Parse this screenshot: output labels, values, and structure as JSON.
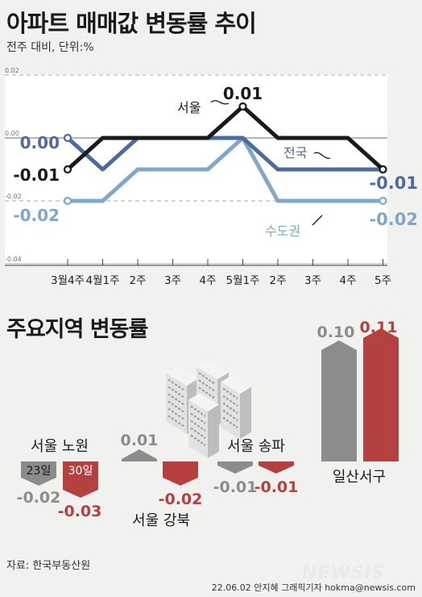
{
  "title": "아파트 매매값 변동률 추이",
  "subtitle": "전주 대비, 단위:%",
  "section2_title": "주요지역 변동률",
  "source": "자료: 한국부동산원",
  "credit": "22.06.02 안지혜 그래픽기자 hokma@newsis.com",
  "watermark": "NEWSIS",
  "chart_data": [
    {
      "type": "line",
      "x": [
        "3월4주",
        "4월1주",
        "2주",
        "3주",
        "4주",
        "5월1주",
        "2주",
        "3주",
        "4주",
        "5주"
      ],
      "ylim": [
        -0.04,
        0.02
      ],
      "y_ticks": [
        "0.02",
        "0.00",
        "-0.02",
        "-0.04"
      ],
      "series": [
        {
          "name": "서울",
          "color": "#1a1a1a",
          "values": [
            -0.01,
            0.0,
            0.0,
            0.0,
            0.0,
            0.01,
            0.0,
            0.0,
            0.0,
            -0.01
          ],
          "start_label": "-0.01",
          "peak_label": "0.01",
          "end_label": ""
        },
        {
          "name": "전국",
          "color": "#4f6a9e",
          "values": [
            0.0,
            -0.01,
            0.0,
            0.0,
            0.0,
            0.0,
            -0.01,
            -0.01,
            -0.01,
            -0.01
          ],
          "start_label": "0.00",
          "end_label": "-0.01"
        },
        {
          "name": "수도권",
          "color": "#7fa8c8",
          "values": [
            -0.02,
            -0.02,
            -0.01,
            -0.01,
            -0.01,
            0.0,
            -0.02,
            -0.02,
            -0.02,
            -0.02
          ],
          "start_label": "-0.02",
          "end_label": "-0.02"
        }
      ]
    },
    {
      "type": "bar",
      "series_names": [
        "23일",
        "30일"
      ],
      "colors": [
        "#8c8c8c",
        "#b4403f"
      ],
      "regions": [
        {
          "name": "서울 노원",
          "values": [
            -0.02,
            -0.03
          ],
          "labels": [
            "-0.02",
            "-0.03"
          ]
        },
        {
          "name": "서울 강북",
          "values": [
            0.01,
            -0.02
          ],
          "labels": [
            "0.01",
            "-0.02"
          ]
        },
        {
          "name": "서울 송파",
          "values": [
            -0.01,
            -0.01
          ],
          "labels": [
            "-0.01",
            "-0.01"
          ]
        },
        {
          "name": "일산서구",
          "values": [
            0.1,
            0.11
          ],
          "labels": [
            "0.10",
            "0.11"
          ]
        }
      ]
    }
  ]
}
